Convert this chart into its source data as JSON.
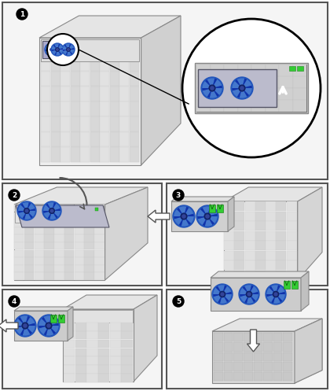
{
  "bg": "#ffffff",
  "fig_w": 4.2,
  "fig_h": 4.97,
  "dpi": 100,
  "stripe_color": "#d8d8d8",
  "stripe_edge": "#c0c0c0",
  "chassis_face": "#e8e8e8",
  "chassis_side": "#d0d0d0",
  "chassis_top": "#eeeeee",
  "chassis_edge": "#888888",
  "fan_blue": "#2255bb",
  "fan_dark": "#1133aa",
  "fan_light": "#4477cc",
  "fan_center": "#112266",
  "green1": "#33cc33",
  "green2": "#22aa22",
  "ps_face": "#cccccc",
  "ps_dark": "#aaaaaa",
  "ps_top": "#dddddd",
  "arrow_white": "#ffffff",
  "arrow_dark": "#555555",
  "panel_border": "#333333",
  "panel_bg": "#f8f8f8",
  "label_bg": "#000000",
  "label_fg": "#ffffff"
}
